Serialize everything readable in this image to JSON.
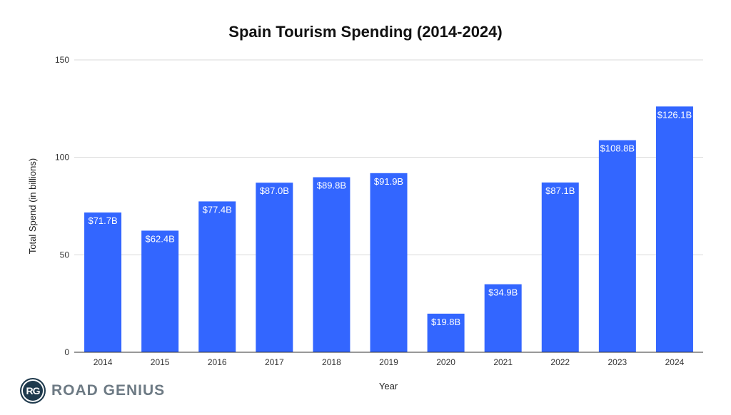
{
  "chart_data": {
    "type": "bar",
    "title": "Spain Tourism Spending (2014-2024)",
    "xlabel": "Year",
    "ylabel": "Total Spend (in billions)",
    "categories": [
      "2014",
      "2015",
      "2016",
      "2017",
      "2018",
      "2019",
      "2020",
      "2021",
      "2022",
      "2023",
      "2024"
    ],
    "values": [
      71.7,
      62.4,
      77.4,
      87.0,
      89.8,
      91.9,
      19.8,
      34.9,
      87.1,
      108.8,
      126.1
    ],
    "data_labels": [
      "$71.7B",
      "$62.4B",
      "$77.4B",
      "$87.0B",
      "$89.8B",
      "$91.9B",
      "$19.8B",
      "$34.9B",
      "$87.1B",
      "$108.8B",
      "$126.1B"
    ],
    "ylim": [
      0,
      150
    ],
    "yticks": [
      0,
      50,
      100,
      150
    ],
    "grid": true,
    "bar_color": "#3366ff",
    "legend": "none"
  },
  "branding": {
    "badge": "RG",
    "name": "ROAD GENIUS"
  }
}
